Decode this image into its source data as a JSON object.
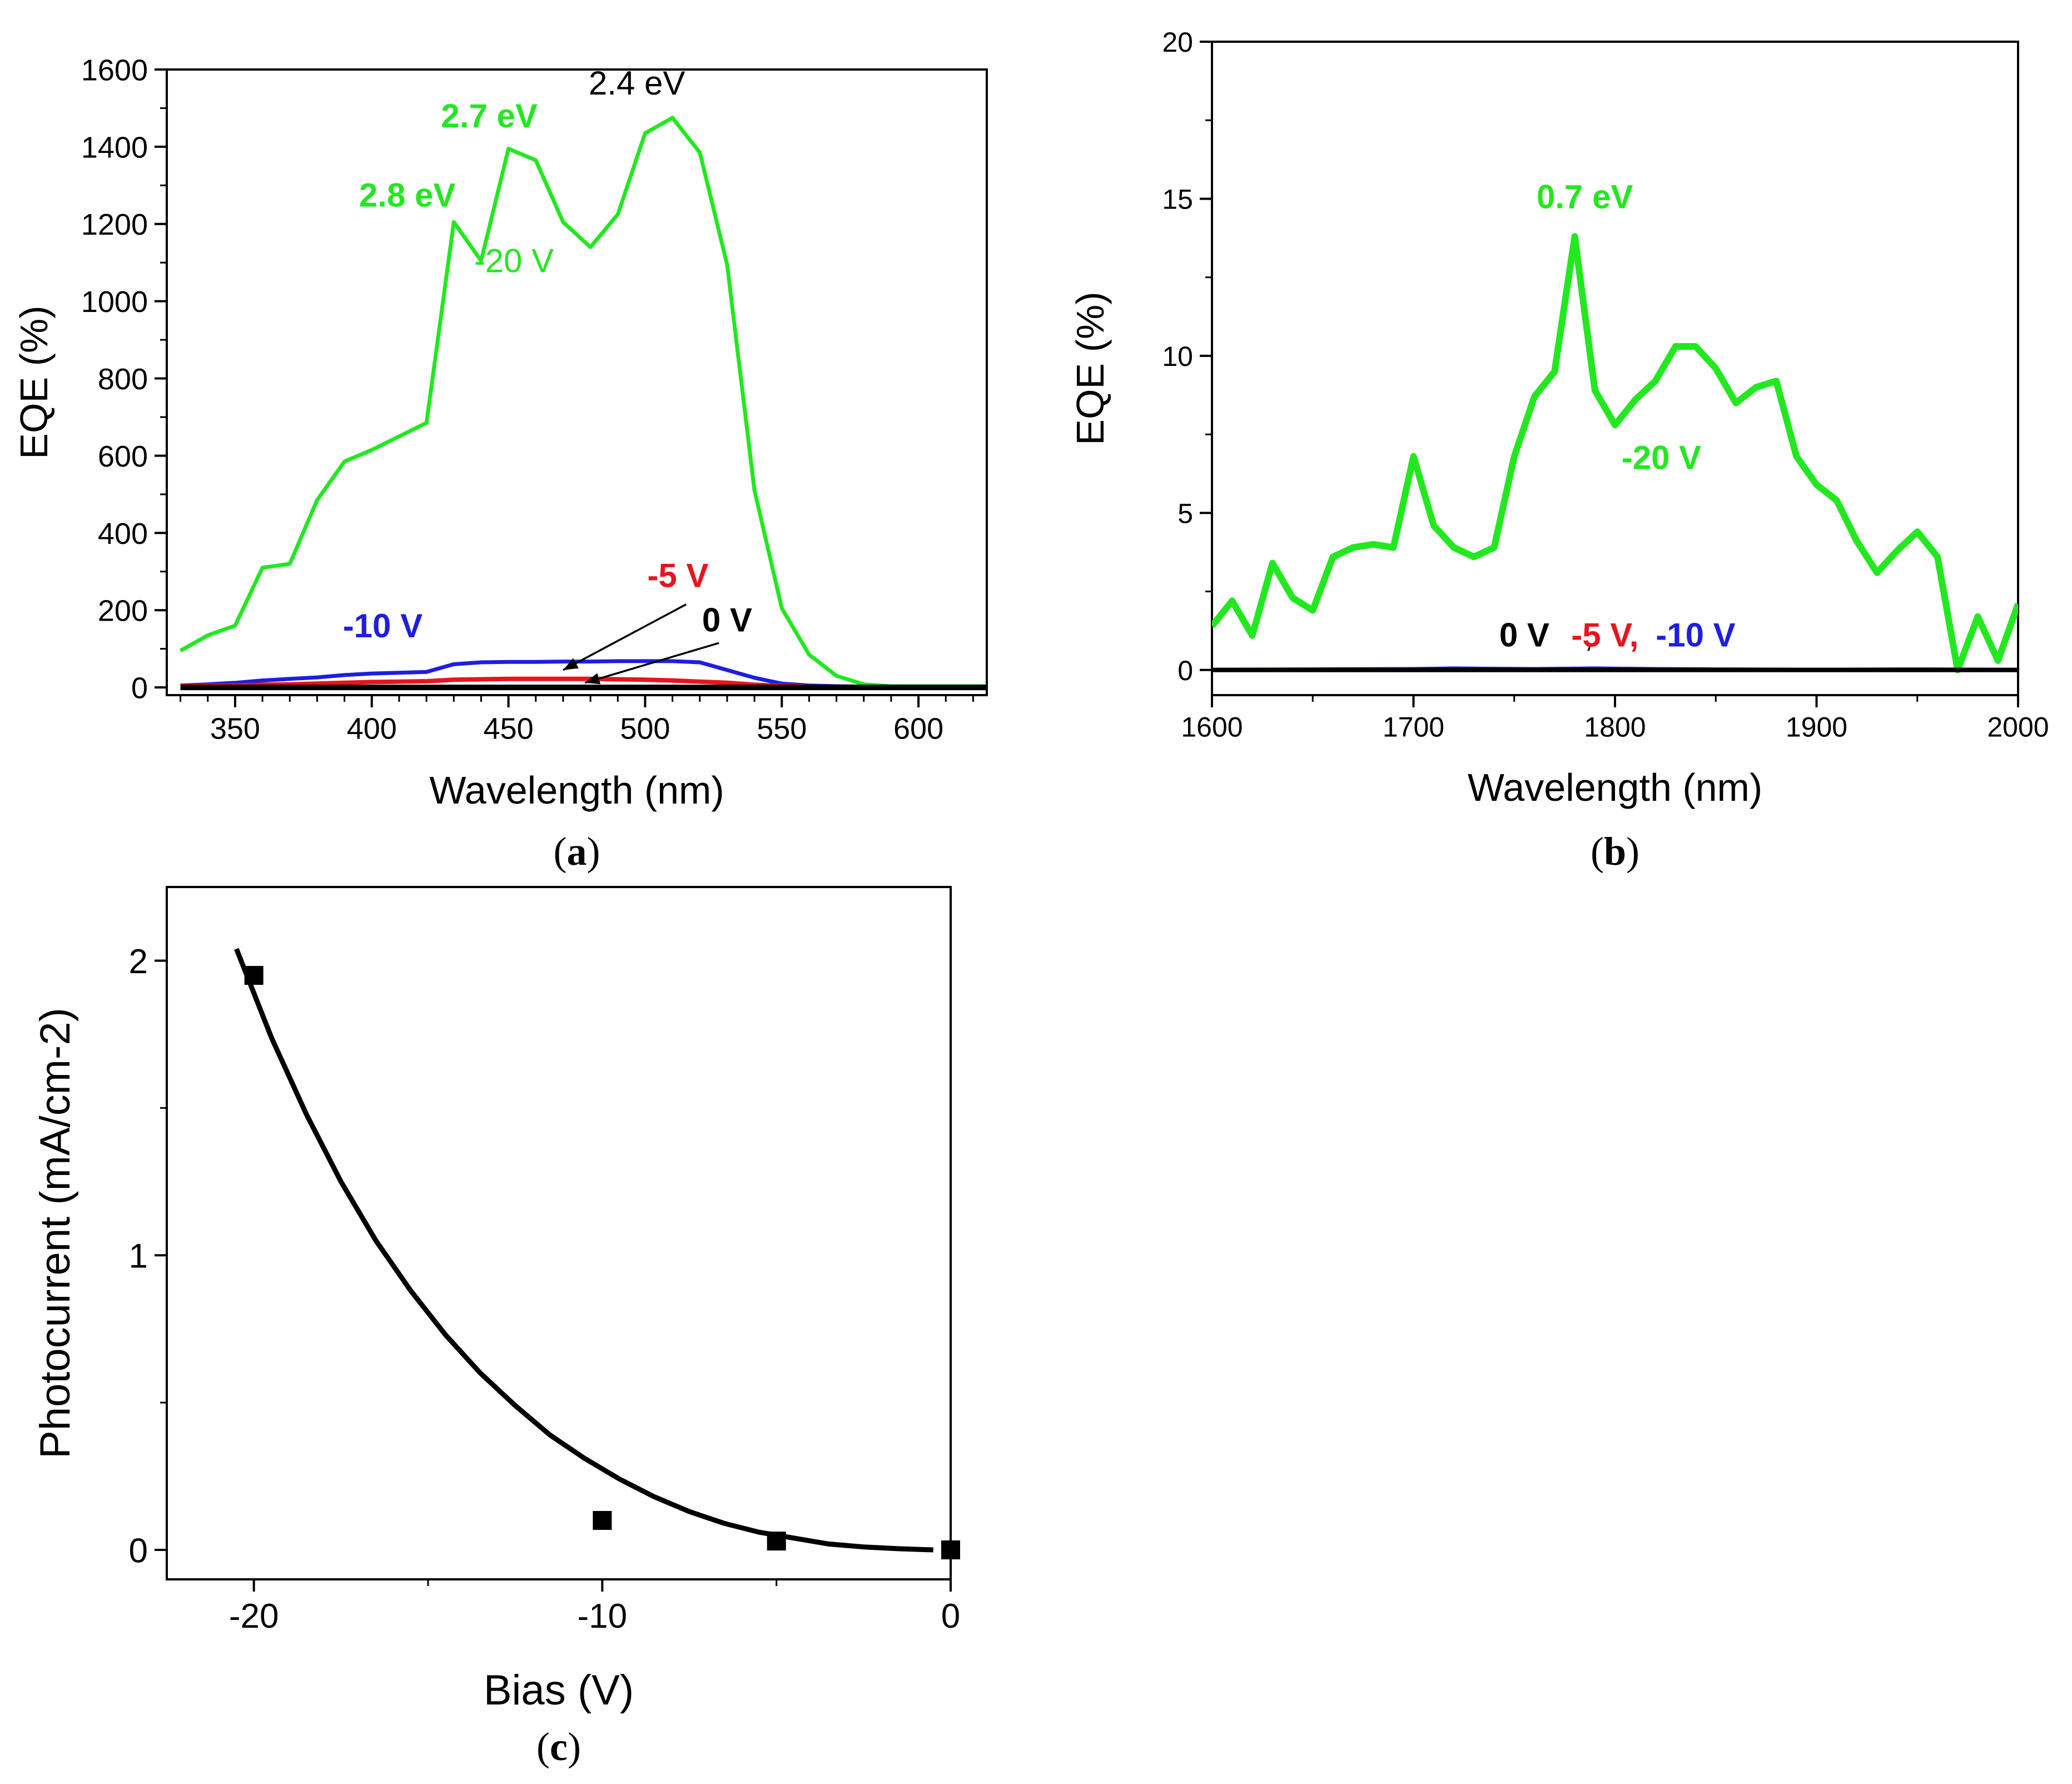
{
  "colors": {
    "green": "#22e81f",
    "red": "#e8141e",
    "blue": "#1e1ee0",
    "black": "#000000"
  },
  "chart_data": [
    {
      "id": "a",
      "type": "line",
      "caption_letter": "a",
      "xlabel": "Wavelength (nm)",
      "ylabel": "EQE (%)",
      "xlim": [
        325,
        625
      ],
      "ylim": [
        -20,
        1600
      ],
      "xticks": [
        350,
        400,
        450,
        500,
        550,
        600
      ],
      "yticks": [
        0,
        200,
        400,
        600,
        800,
        1000,
        1200,
        1400,
        1600
      ],
      "series": [
        {
          "name": "-20 V",
          "color": "green",
          "x": [
            330,
            340,
            350,
            360,
            370,
            380,
            390,
            400,
            410,
            420,
            430,
            440,
            450,
            460,
            470,
            480,
            490,
            500,
            510,
            520,
            530,
            540,
            550,
            560,
            570,
            580,
            590,
            600,
            610,
            625
          ],
          "y": [
            95,
            135,
            160,
            310,
            320,
            485,
            585,
            615,
            650,
            685,
            1205,
            1105,
            1395,
            1365,
            1205,
            1140,
            1225,
            1435,
            1475,
            1385,
            1095,
            510,
            205,
            85,
            30,
            8,
            3,
            3,
            3,
            3
          ]
        },
        {
          "name": "-10 V",
          "color": "blue",
          "x": [
            330,
            340,
            350,
            360,
            370,
            380,
            390,
            400,
            410,
            420,
            430,
            440,
            450,
            460,
            470,
            480,
            490,
            500,
            510,
            520,
            530,
            540,
            550,
            560,
            570,
            580,
            590,
            600,
            610,
            625
          ],
          "y": [
            5,
            8,
            12,
            18,
            22,
            26,
            32,
            36,
            38,
            40,
            60,
            65,
            66,
            66,
            67,
            67,
            68,
            68,
            68,
            65,
            45,
            25,
            10,
            5,
            3,
            2,
            2,
            1,
            1,
            1
          ]
        },
        {
          "name": "-5 V",
          "color": "red",
          "x": [
            330,
            340,
            350,
            360,
            370,
            380,
            390,
            400,
            410,
            420,
            430,
            440,
            450,
            460,
            470,
            480,
            490,
            500,
            510,
            520,
            530,
            540,
            550,
            560,
            570,
            580,
            590,
            600,
            610,
            625
          ],
          "y": [
            3,
            4,
            5,
            7,
            8,
            10,
            12,
            14,
            15,
            16,
            20,
            21,
            22,
            22,
            22,
            22,
            21,
            20,
            18,
            15,
            12,
            7,
            4,
            2,
            1,
            1,
            1,
            1,
            1,
            1
          ],
          "line_width": 8
        },
        {
          "name": "0 V",
          "color": "black",
          "x": [
            330,
            625
          ],
          "y": [
            0,
            0
          ],
          "line_width": 10
        }
      ],
      "annotations": [
        {
          "text": "2.4 eV",
          "color": "black",
          "bold": false,
          "x": 497,
          "y": 1535
        },
        {
          "text": "2.7 eV",
          "color": "green",
          "bold": true,
          "x": 443,
          "y": 1450
        },
        {
          "text": "2.8 eV",
          "color": "green",
          "bold": true,
          "x": 413,
          "y": 1245
        },
        {
          "text": "-20 V",
          "color": "green",
          "bold": false,
          "x": 452,
          "y": 1075
        },
        {
          "text": "-10 V",
          "color": "blue",
          "bold": true,
          "x": 404,
          "y": 130
        },
        {
          "text": "-5 V",
          "color": "red",
          "bold": true,
          "x": 512,
          "y": 260
        },
        {
          "text": "0 V",
          "color": "black",
          "bold": true,
          "x": 530,
          "y": 145
        }
      ],
      "arrows": [
        {
          "from": [
            515,
            215
          ],
          "to": [
            470,
            45
          ]
        },
        {
          "from": [
            527,
            115
          ],
          "to": [
            478,
            12
          ]
        }
      ]
    },
    {
      "id": "b",
      "type": "line",
      "caption_letter": "b",
      "xlabel": "Wavelength (nm)",
      "ylabel": "EQE (%)",
      "xlim": [
        1600,
        2000
      ],
      "ylim": [
        -0.8,
        20
      ],
      "xticks": [
        1600,
        1700,
        1800,
        1900,
        2000
      ],
      "yticks": [
        0,
        5,
        10,
        15,
        20
      ],
      "series": [
        {
          "name": "-20 V",
          "color": "green",
          "line_width": 12,
          "x": [
            1600,
            1610,
            1620,
            1630,
            1640,
            1650,
            1660,
            1670,
            1680,
            1690,
            1700,
            1710,
            1720,
            1730,
            1740,
            1750,
            1760,
            1770,
            1780,
            1790,
            1800,
            1810,
            1820,
            1830,
            1840,
            1850,
            1860,
            1870,
            1880,
            1890,
            1900,
            1910,
            1920,
            1930,
            1940,
            1950,
            1960,
            1970,
            1980,
            1990,
            2000
          ],
          "y": [
            1.4,
            2.2,
            1.1,
            3.4,
            2.3,
            1.9,
            3.6,
            3.9,
            4.0,
            3.9,
            6.8,
            4.6,
            3.9,
            3.6,
            3.9,
            6.8,
            8.7,
            9.5,
            13.8,
            8.9,
            7.8,
            8.6,
            9.2,
            10.3,
            10.3,
            9.6,
            8.5,
            9.0,
            9.2,
            6.8,
            5.9,
            5.4,
            4.1,
            3.1,
            3.8,
            4.4,
            3.6,
            0.0,
            1.7,
            0.3,
            2.1
          ]
        },
        {
          "name": "-10 V",
          "color": "blue",
          "line_width": 6,
          "x": [
            1600,
            1650,
            1700,
            1720,
            1740,
            1760,
            1790,
            1820,
            1850,
            1900,
            1950,
            2000
          ],
          "y": [
            0.02,
            0.03,
            0.04,
            0.06,
            0.05,
            0.04,
            0.06,
            0.04,
            0.03,
            0.02,
            0.03,
            0.02
          ]
        },
        {
          "name": "-5 V",
          "color": "red",
          "line_width": 6,
          "x": [
            1600,
            1700,
            1800,
            1900,
            2000
          ],
          "y": [
            0.0,
            0.01,
            0.0,
            0.01,
            0.0
          ]
        },
        {
          "name": "0 V",
          "color": "black",
          "line_width": 8,
          "x": [
            1600,
            2000
          ],
          "y": [
            0.0,
            0.0
          ]
        }
      ],
      "annotations": [
        {
          "text": "0.7 eV",
          "color": "green",
          "bold": true,
          "x": 1785,
          "y": 14.7
        },
        {
          "text": "-20 V",
          "color": "green",
          "bold": true,
          "x": 1823,
          "y": 6.4
        },
        {
          "text": "0 V",
          "color": "black",
          "bold": true,
          "x": 1755,
          "y": 0.75
        },
        {
          "text": ",",
          "color": "black",
          "bold": false,
          "x": 1787,
          "y": 0.75
        },
        {
          "text": "-5 V,",
          "color": "red",
          "bold": true,
          "x": 1795,
          "y": 0.75
        },
        {
          "text": "-10 V",
          "color": "blue",
          "bold": true,
          "x": 1840,
          "y": 0.75
        }
      ]
    },
    {
      "id": "c",
      "type": "scatter",
      "caption_letter": "c",
      "xlabel": "Bias (V)",
      "ylabel": "Photocurrent (mA/cm-2)",
      "xlim": [
        -22.5,
        0
      ],
      "ylim": [
        -0.1,
        2.25
      ],
      "xticks": [
        -20,
        -10,
        0
      ],
      "yticks": [
        0,
        1,
        2
      ],
      "points": {
        "x": [
          -20,
          -10,
          -5,
          0
        ],
        "y": [
          1.95,
          0.1,
          0.03,
          0.0
        ]
      },
      "fit": {
        "name": "exponential fit",
        "color": "black",
        "x": [
          -20.5,
          -19.5,
          -18.5,
          -17.5,
          -16.5,
          -15.5,
          -14.5,
          -13.5,
          -12.5,
          -11.5,
          -10.5,
          -9.5,
          -8.5,
          -7.5,
          -6.5,
          -5.5,
          -4.5,
          -3.5,
          -2.5,
          -1.5,
          -0.5
        ],
        "y": [
          2.04,
          1.74,
          1.48,
          1.25,
          1.05,
          0.88,
          0.73,
          0.6,
          0.49,
          0.39,
          0.31,
          0.24,
          0.18,
          0.13,
          0.09,
          0.06,
          0.04,
          0.02,
          0.01,
          0.004,
          0.0
        ]
      }
    }
  ]
}
